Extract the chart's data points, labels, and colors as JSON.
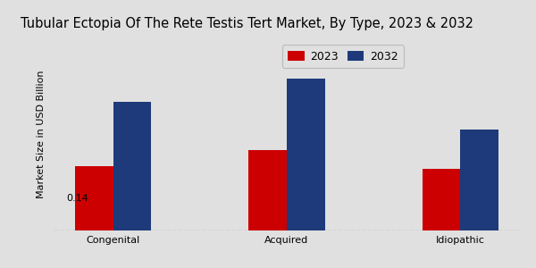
{
  "title": "Tubular Ectopia Of The Rete Testis Tert Market, By Type, 2023 & 2032",
  "categories": [
    "Congenital",
    "Acquired",
    "Idiopathic"
  ],
  "series": {
    "2023": [
      0.14,
      0.175,
      0.135
    ],
    "2032": [
      0.28,
      0.33,
      0.22
    ]
  },
  "colors": {
    "2023": "#cc0000",
    "2032": "#1e3a7a"
  },
  "ylabel": "Market Size in USD Billion",
  "annotation_text": "0.14",
  "ylim": [
    0,
    0.42
  ],
  "bar_width": 0.22,
  "background_color": "#e0e0e0",
  "title_fontsize": 10.5,
  "ylabel_fontsize": 8,
  "tick_fontsize": 8,
  "legend_fontsize": 9
}
